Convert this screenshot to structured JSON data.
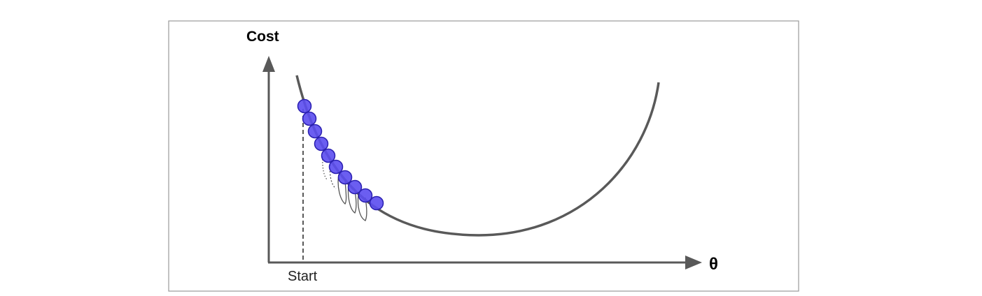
{
  "diagram": {
    "y_axis_label": "Cost",
    "x_axis_label": "θ",
    "start_label": "Start",
    "colors": {
      "frame": "#9a9a9a",
      "axis": "#595959",
      "curve": "#595959",
      "ball_fill": "#5b4cf0",
      "ball_stroke": "#2a1fb0",
      "hop": "#555555"
    },
    "steps": 10
  }
}
